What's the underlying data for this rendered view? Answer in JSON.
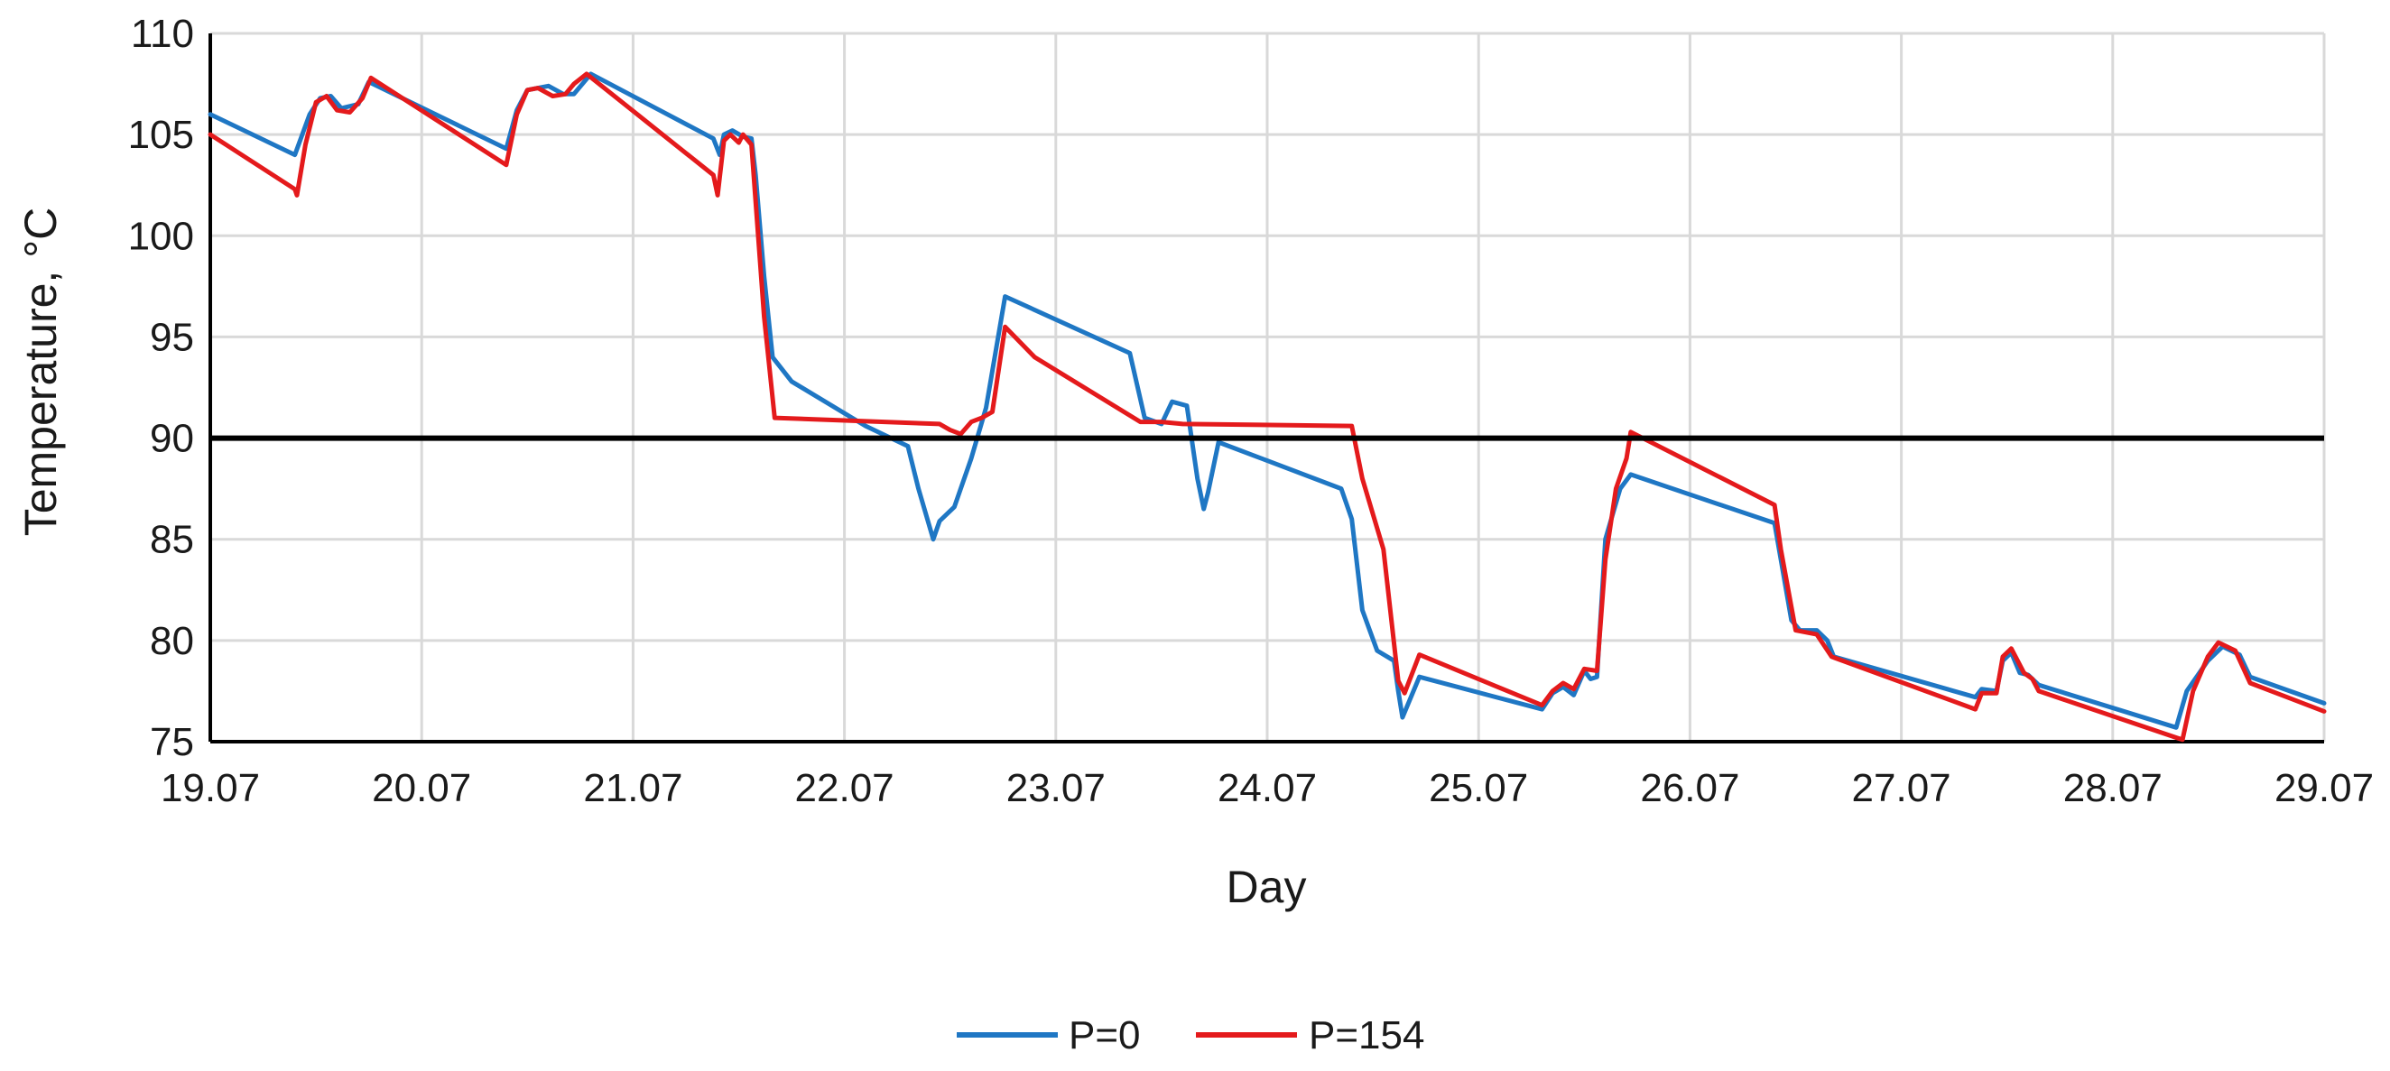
{
  "chart_data": {
    "type": "line",
    "xlabel": "Day",
    "ylabel": "Temperature, °C",
    "ylim": [
      75,
      110
    ],
    "xlim": [
      0,
      10
    ],
    "grid": true,
    "legend_position": "bottom",
    "x_tick_labels": [
      "19.07",
      "20.07",
      "21.07",
      "22.07",
      "23.07",
      "24.07",
      "25.07",
      "26.07",
      "27.07",
      "28.07",
      "29.07"
    ],
    "y_tick_labels": [
      "75",
      "80",
      "85",
      "90",
      "95",
      "100",
      "105",
      "110"
    ],
    "y_ticks": [
      75,
      80,
      85,
      90,
      95,
      100,
      105,
      110
    ],
    "reference_line": {
      "y": 90,
      "color": "#000000"
    },
    "series": [
      {
        "name": "P=0",
        "color": "#1f77c4",
        "points": [
          [
            0,
            106
          ],
          [
            0.4,
            104
          ],
          [
            0.47,
            106
          ],
          [
            0.52,
            106.8
          ],
          [
            0.57,
            106.9
          ],
          [
            0.62,
            106.3
          ],
          [
            0.7,
            106.5
          ],
          [
            0.75,
            107.6
          ],
          [
            1.4,
            104.3
          ],
          [
            1.45,
            106.2
          ],
          [
            1.5,
            107.2
          ],
          [
            1.6,
            107.4
          ],
          [
            1.67,
            107
          ],
          [
            1.72,
            107
          ],
          [
            1.8,
            108
          ],
          [
            2.38,
            104.8
          ],
          [
            2.41,
            104
          ],
          [
            2.43,
            105
          ],
          [
            2.47,
            105.2
          ],
          [
            2.52,
            104.9
          ],
          [
            2.56,
            104.8
          ],
          [
            2.58,
            103
          ],
          [
            2.62,
            98
          ],
          [
            2.66,
            94
          ],
          [
            2.75,
            92.8
          ],
          [
            3.1,
            90.6
          ],
          [
            3.3,
            89.6
          ],
          [
            3.35,
            87.5
          ],
          [
            3.42,
            85
          ],
          [
            3.45,
            85.9
          ],
          [
            3.52,
            86.6
          ],
          [
            3.6,
            89
          ],
          [
            3.67,
            91.5
          ],
          [
            3.76,
            97
          ],
          [
            4.35,
            94.2
          ],
          [
            4.42,
            91
          ],
          [
            4.5,
            90.7
          ],
          [
            4.55,
            91.8
          ],
          [
            4.62,
            91.6
          ],
          [
            4.67,
            88
          ],
          [
            4.7,
            86.5
          ],
          [
            4.72,
            87.3
          ],
          [
            4.77,
            89.8
          ],
          [
            5.35,
            87.5
          ],
          [
            5.4,
            86
          ],
          [
            5.45,
            81.5
          ],
          [
            5.52,
            79.5
          ],
          [
            5.6,
            79
          ],
          [
            5.62,
            77.5
          ],
          [
            5.64,
            76.2
          ],
          [
            5.72,
            78.2
          ],
          [
            6.3,
            76.6
          ],
          [
            6.35,
            77.4
          ],
          [
            6.4,
            77.7
          ],
          [
            6.45,
            77.3
          ],
          [
            6.5,
            78.5
          ],
          [
            6.53,
            78.1
          ],
          [
            6.56,
            78.2
          ],
          [
            6.6,
            85
          ],
          [
            6.67,
            87.5
          ],
          [
            6.72,
            88.2
          ],
          [
            7.4,
            85.8
          ],
          [
            7.43,
            84
          ],
          [
            7.48,
            81
          ],
          [
            7.52,
            80.5
          ],
          [
            7.6,
            80.5
          ],
          [
            7.65,
            80
          ],
          [
            7.68,
            79.2
          ],
          [
            8.35,
            77.2
          ],
          [
            8.38,
            77.6
          ],
          [
            8.45,
            77.5
          ],
          [
            8.48,
            79
          ],
          [
            8.52,
            79.4
          ],
          [
            8.56,
            78.4
          ],
          [
            8.6,
            78.3
          ],
          [
            8.65,
            77.8
          ],
          [
            9.3,
            75.7
          ],
          [
            9.35,
            77.5
          ],
          [
            9.45,
            79
          ],
          [
            9.52,
            79.7
          ],
          [
            9.6,
            79.3
          ],
          [
            9.65,
            78.2
          ],
          [
            10,
            76.9
          ]
        ]
      },
      {
        "name": "P=154",
        "color": "#e41a1c",
        "points": [
          [
            0,
            105
          ],
          [
            0.4,
            102.3
          ],
          [
            0.41,
            102
          ],
          [
            0.45,
            104.5
          ],
          [
            0.5,
            106.6
          ],
          [
            0.55,
            106.9
          ],
          [
            0.6,
            106.2
          ],
          [
            0.66,
            106.1
          ],
          [
            0.72,
            106.8
          ],
          [
            0.76,
            107.8
          ],
          [
            1.4,
            103.5
          ],
          [
            1.45,
            106
          ],
          [
            1.5,
            107.2
          ],
          [
            1.55,
            107.3
          ],
          [
            1.62,
            106.9
          ],
          [
            1.68,
            107
          ],
          [
            1.72,
            107.5
          ],
          [
            1.78,
            108
          ],
          [
            2.38,
            103
          ],
          [
            2.4,
            102
          ],
          [
            2.43,
            104.7
          ],
          [
            2.46,
            105
          ],
          [
            2.5,
            104.6
          ],
          [
            2.52,
            105
          ],
          [
            2.56,
            104.5
          ],
          [
            2.62,
            96
          ],
          [
            2.67,
            91
          ],
          [
            3.45,
            90.7
          ],
          [
            3.5,
            90.4
          ],
          [
            3.55,
            90.2
          ],
          [
            3.6,
            90.8
          ],
          [
            3.65,
            91
          ],
          [
            3.7,
            91.3
          ],
          [
            3.76,
            95.5
          ],
          [
            3.9,
            94
          ],
          [
            4.4,
            90.8
          ],
          [
            4.5,
            90.8
          ],
          [
            4.6,
            90.7
          ],
          [
            5.4,
            90.6
          ],
          [
            5.45,
            88
          ],
          [
            5.55,
            84.5
          ],
          [
            5.62,
            78
          ],
          [
            5.65,
            77.4
          ],
          [
            5.72,
            79.3
          ],
          [
            6.3,
            76.8
          ],
          [
            6.35,
            77.5
          ],
          [
            6.4,
            77.9
          ],
          [
            6.45,
            77.6
          ],
          [
            6.5,
            78.6
          ],
          [
            6.56,
            78.5
          ],
          [
            6.6,
            84
          ],
          [
            6.65,
            87.5
          ],
          [
            6.7,
            89
          ],
          [
            6.72,
            90.3
          ],
          [
            7.4,
            86.7
          ],
          [
            7.43,
            84.5
          ],
          [
            7.5,
            80.5
          ],
          [
            7.6,
            80.3
          ],
          [
            7.67,
            79.2
          ],
          [
            8.35,
            76.6
          ],
          [
            8.38,
            77.4
          ],
          [
            8.45,
            77.4
          ],
          [
            8.48,
            79.2
          ],
          [
            8.52,
            79.6
          ],
          [
            8.58,
            78.4
          ],
          [
            8.62,
            78.1
          ],
          [
            8.65,
            77.5
          ],
          [
            9.3,
            75.2
          ],
          [
            9.33,
            75.1
          ],
          [
            9.38,
            77.5
          ],
          [
            9.45,
            79.2
          ],
          [
            9.5,
            79.9
          ],
          [
            9.58,
            79.5
          ],
          [
            9.65,
            77.9
          ],
          [
            10,
            76.5
          ]
        ]
      }
    ]
  }
}
